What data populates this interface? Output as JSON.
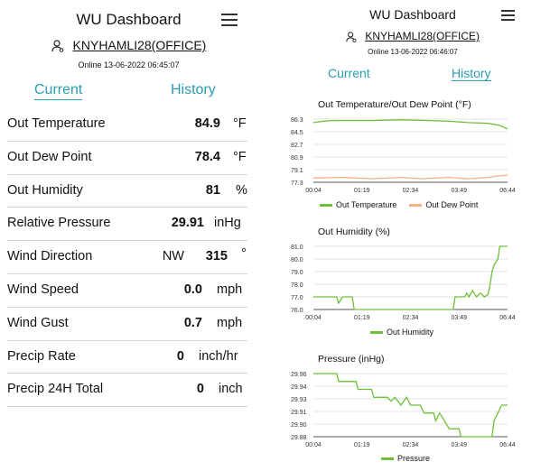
{
  "app_title": "WU Dashboard",
  "station": "KNYHAMLI28(OFFICE)",
  "left": {
    "online": "Online 13-06-2022 06:45:07",
    "tabs": {
      "current": "Current",
      "history": "History"
    },
    "metrics": [
      {
        "label": "Out Temperature",
        "value": "84.9",
        "unit": "°F"
      },
      {
        "label": "Out Dew Point",
        "value": "78.4",
        "unit": "°F"
      },
      {
        "label": "Out Humidity",
        "value": "81",
        "unit": "%"
      },
      {
        "label": "Relative Pressure",
        "value": "29.91",
        "unit": "inHg"
      },
      {
        "label": "Wind Direction",
        "direction": "NW",
        "value": "315",
        "unit": "°"
      },
      {
        "label": "Wind Speed",
        "value": "0.0",
        "unit": "mph"
      },
      {
        "label": "Wind Gust",
        "value": "0.7",
        "unit": "mph"
      },
      {
        "label": "Precip Rate",
        "value": "0",
        "unit": "inch/hr"
      },
      {
        "label": "Precip 24H Total",
        "value": "0",
        "unit": "inch"
      }
    ]
  },
  "right": {
    "online": "Online 13-06-2022 06:46:07",
    "tabs": {
      "current": "Current",
      "history": "History"
    }
  },
  "colors": {
    "accent": "#2b9bb0",
    "series_green": "#6fbf3a",
    "series_peach": "#f4b183",
    "grid": "#e3e3e3"
  },
  "chart_data": [
    {
      "type": "line",
      "title": "Out Temperature/Out Dew Point (°F)",
      "x_ticks": [
        "00:04",
        "01:19",
        "02:34",
        "03:49",
        "06:44"
      ],
      "y_ticks": [
        "86.3",
        "84.5",
        "82.7",
        "80.9",
        "79.1",
        "77.3"
      ],
      "ylim": [
        77.3,
        86.3
      ],
      "series": [
        {
          "name": "Out Temperature",
          "color": "#6fbf3a",
          "points": [
            [
              0,
              85.8
            ],
            [
              0.05,
              86.0
            ],
            [
              0.1,
              86.1
            ],
            [
              0.3,
              86.1
            ],
            [
              0.45,
              86.2
            ],
            [
              0.6,
              86.1
            ],
            [
              0.7,
              86.0
            ],
            [
              0.8,
              85.8
            ],
            [
              0.9,
              85.7
            ],
            [
              0.96,
              85.4
            ],
            [
              1,
              84.9
            ]
          ]
        },
        {
          "name": "Out Dew Point",
          "color": "#f4b183",
          "points": [
            [
              0,
              77.9
            ],
            [
              0.15,
              78.0
            ],
            [
              0.3,
              77.8
            ],
            [
              0.45,
              78.0
            ],
            [
              0.55,
              77.8
            ],
            [
              0.7,
              78.0
            ],
            [
              0.8,
              77.8
            ],
            [
              0.9,
              78.0
            ],
            [
              0.95,
              78.2
            ],
            [
              1,
              78.3
            ]
          ]
        }
      ]
    },
    {
      "type": "line",
      "title": "Out Humidity (%)",
      "x_ticks": [
        "00:04",
        "01:19",
        "02:34",
        "03:49",
        "06:44"
      ],
      "y_ticks": [
        "81.0",
        "80.0",
        "79.0",
        "78.0",
        "77.0",
        "76.0"
      ],
      "ylim": [
        76.0,
        81.0
      ],
      "series": [
        {
          "name": "Out Humidity",
          "color": "#6fbf3a",
          "points": [
            [
              0,
              77.0
            ],
            [
              0.12,
              77.0
            ],
            [
              0.13,
              76.5
            ],
            [
              0.15,
              77.0
            ],
            [
              0.2,
              77.0
            ],
            [
              0.21,
              76.0
            ],
            [
              0.72,
              76.0
            ],
            [
              0.73,
              77.0
            ],
            [
              0.78,
              77.0
            ],
            [
              0.79,
              77.3
            ],
            [
              0.8,
              77.0
            ],
            [
              0.82,
              77.5
            ],
            [
              0.84,
              77.0
            ],
            [
              0.86,
              77.3
            ],
            [
              0.88,
              77.0
            ],
            [
              0.9,
              77.2
            ],
            [
              0.91,
              78.0
            ],
            [
              0.92,
              79.0
            ],
            [
              0.93,
              79.5
            ],
            [
              0.95,
              80.0
            ],
            [
              0.96,
              81.0
            ],
            [
              1,
              81.0
            ]
          ]
        }
      ]
    },
    {
      "type": "line",
      "title": "Pressure (inHg)",
      "x_ticks": [
        "00:04",
        "01:19",
        "02:34",
        "03:49",
        "06:44"
      ],
      "y_ticks": [
        "29.96",
        "29.94",
        "29.93",
        "29.91",
        "29.90",
        "29.88"
      ],
      "ylim": [
        29.88,
        29.96
      ],
      "series": [
        {
          "name": "Pressure",
          "color": "#6fbf3a",
          "points": [
            [
              0,
              29.96
            ],
            [
              0.12,
              29.96
            ],
            [
              0.13,
              29.95
            ],
            [
              0.22,
              29.95
            ],
            [
              0.23,
              29.94
            ],
            [
              0.3,
              29.94
            ],
            [
              0.31,
              29.93
            ],
            [
              0.38,
              29.93
            ],
            [
              0.4,
              29.925
            ],
            [
              0.42,
              29.93
            ],
            [
              0.45,
              29.92
            ],
            [
              0.48,
              29.93
            ],
            [
              0.5,
              29.92
            ],
            [
              0.55,
              29.92
            ],
            [
              0.57,
              29.91
            ],
            [
              0.62,
              29.91
            ],
            [
              0.63,
              29.9
            ],
            [
              0.65,
              29.91
            ],
            [
              0.7,
              29.89
            ],
            [
              0.75,
              29.89
            ],
            [
              0.76,
              29.88
            ],
            [
              0.92,
              29.88
            ],
            [
              0.93,
              29.9
            ],
            [
              0.95,
              29.91
            ],
            [
              0.97,
              29.92
            ],
            [
              1,
              29.92
            ]
          ]
        }
      ]
    }
  ]
}
